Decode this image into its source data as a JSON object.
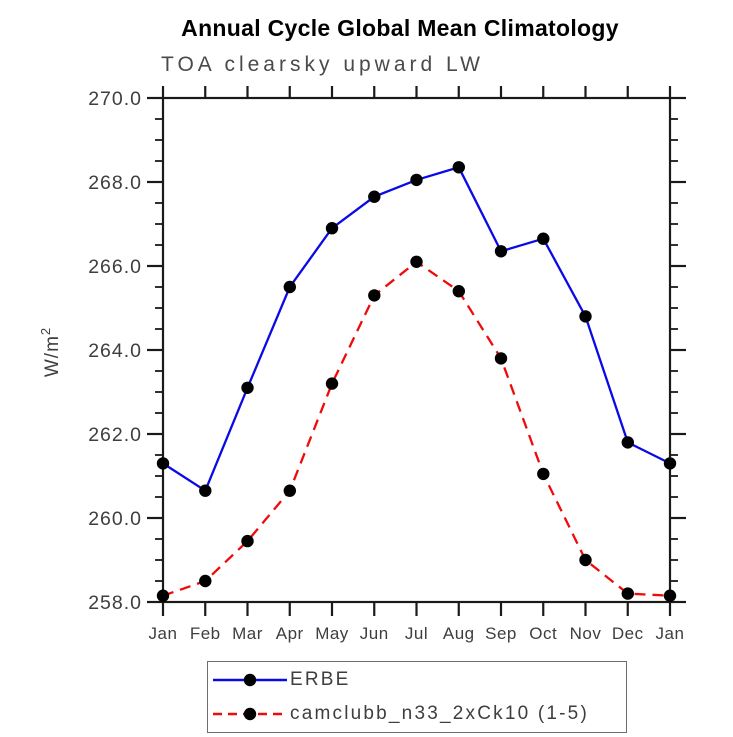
{
  "chart_data": {
    "type": "line",
    "title": "Annual Cycle Global Mean Climatology",
    "subtitle": "TOA clearsky upward LW",
    "ylabel_main": "W/m",
    "ylabel_sup": "2",
    "xlabel": "",
    "categories": [
      "Jan",
      "Feb",
      "Mar",
      "Apr",
      "May",
      "Jun",
      "Jul",
      "Aug",
      "Sep",
      "Oct",
      "Nov",
      "Dec",
      "Jan"
    ],
    "series": [
      {
        "name": "ERBE",
        "color": "#0a0ae6",
        "line": "solid",
        "marker": "circle",
        "marker_color": "#000000",
        "values": [
          261.3,
          260.65,
          263.1,
          265.5,
          266.9,
          267.65,
          268.05,
          268.35,
          266.35,
          266.65,
          264.8,
          261.8,
          261.3
        ]
      },
      {
        "name": "camclubb_n33_2xCk10 (1-5)",
        "color": "#f00a0a",
        "line": "dashed",
        "marker": "circle",
        "marker_color": "#000000",
        "values": [
          258.15,
          258.5,
          259.45,
          260.65,
          263.2,
          265.3,
          266.1,
          265.4,
          263.8,
          261.05,
          259.0,
          258.2,
          258.15
        ]
      }
    ],
    "ylim": [
      258.0,
      270.0
    ],
    "y_major_step": 2.0,
    "y_minor_step": 0.5,
    "y_ticks": [
      258,
      260,
      262,
      264,
      266,
      268,
      270
    ],
    "y_tick_labels": [
      "258.0",
      "260.0",
      "262.0",
      "264.0",
      "266.0",
      "268.0",
      "270.0"
    ],
    "grid": false,
    "legend_position": "bottom",
    "background": "#ffffff",
    "axis_color": "#1a1a1a",
    "label_color": "#3e3e3e"
  }
}
